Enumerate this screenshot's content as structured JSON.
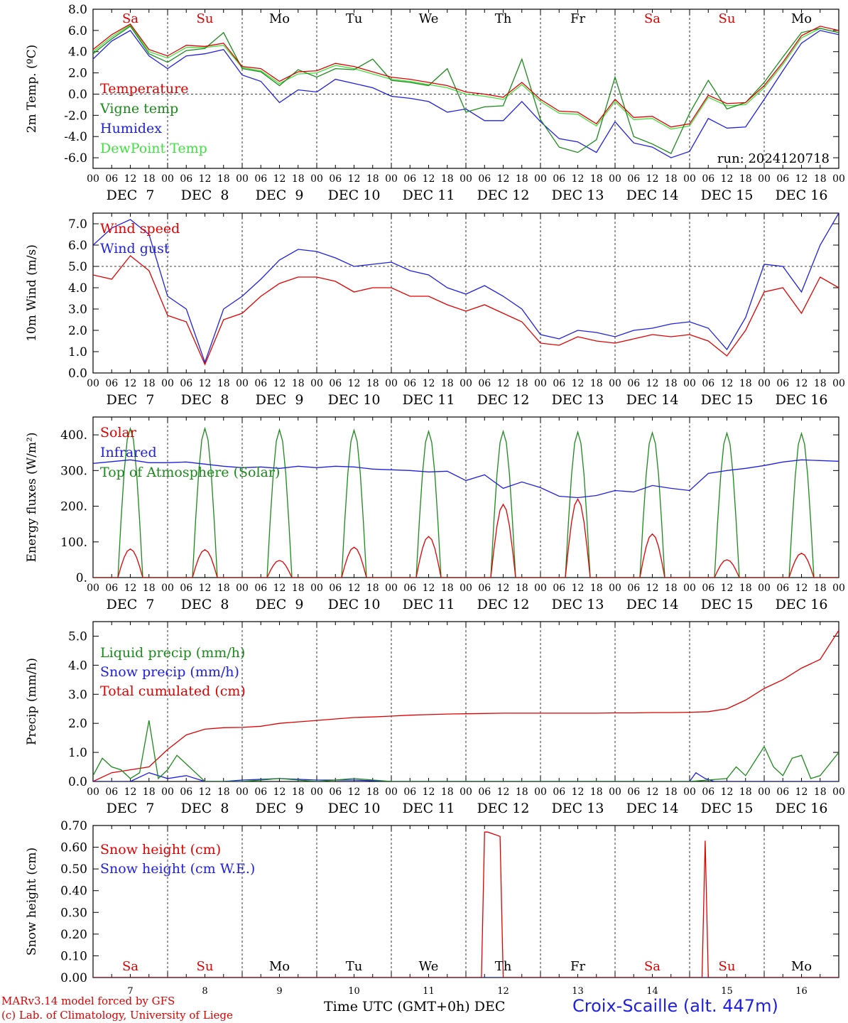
{
  "footer": {
    "model": "MARv3.14 model forced by GFS",
    "copyright": "(c) Lab. of Climatology, University of Liege",
    "station": "Croix-Scaille (alt. 447m)",
    "xlabel": "Time UTC (GMT+0h) DEC"
  },
  "days": [
    {
      "abbr": "Sa",
      "date": "DEC  7",
      "num": "7",
      "weekend": true
    },
    {
      "abbr": "Su",
      "date": "DEC  8",
      "num": "8",
      "weekend": true
    },
    {
      "abbr": "Mo",
      "date": "DEC  9",
      "num": "9",
      "weekend": false
    },
    {
      "abbr": "Tu",
      "date": "DEC 10",
      "num": "10",
      "weekend": false
    },
    {
      "abbr": "We",
      "date": "DEC 11",
      "num": "11",
      "weekend": false
    },
    {
      "abbr": "Th",
      "date": "DEC 12",
      "num": "12",
      "weekend": false
    },
    {
      "abbr": "Fr",
      "date": "DEC 13",
      "num": "13",
      "weekend": false
    },
    {
      "abbr": "Sa",
      "date": "DEC 14",
      "num": "14",
      "weekend": true
    },
    {
      "abbr": "Su",
      "date": "DEC 15",
      "num": "15",
      "weekend": true
    },
    {
      "abbr": "Mo",
      "date": "DEC 16",
      "num": "16",
      "weekend": false
    }
  ],
  "hour_labels": [
    "00",
    "06",
    "12",
    "18"
  ],
  "final_hour_label": "00",
  "colors": {
    "red": "#e00000",
    "green": "#1a8a1a",
    "blue": "#2020e0",
    "lightgreen": "#40e040"
  },
  "chart_data": [
    {
      "type": "line",
      "ylabel": "2m Temp. (ºC)",
      "ylim": [
        -7,
        8
      ],
      "yticks": [
        "-6.0",
        "-4.0",
        "-2.0",
        "0.0",
        "2.0",
        "4.0",
        "6.0",
        "8.0"
      ],
      "yticks_values": [
        -6,
        -4,
        -2,
        0,
        2,
        4,
        6,
        8
      ],
      "reference_line": 0,
      "day_header": true,
      "run_label": "run: 2024120718",
      "x": "hours from 2024-12-07 00 UTC",
      "series": [
        {
          "name": "Temperature",
          "color": "red",
          "x": [
            0,
            6,
            12,
            18,
            24,
            30,
            36,
            42,
            48,
            54,
            60,
            66,
            72,
            78,
            84,
            90,
            96,
            102,
            108,
            114,
            120,
            126,
            132,
            138,
            144,
            150,
            156,
            162,
            168,
            174,
            180,
            186,
            192,
            198,
            204,
            210,
            216,
            222,
            228,
            234,
            240
          ],
          "y": [
            4.2,
            5.6,
            6.6,
            4.2,
            3.6,
            4.6,
            4.5,
            4.8,
            2.6,
            2.4,
            1.2,
            2.1,
            2.2,
            2.9,
            2.6,
            2.1,
            1.6,
            1.4,
            1.1,
            0.8,
            0.2,
            0.0,
            -0.3,
            1.1,
            -0.5,
            -1.6,
            -1.7,
            -2.8,
            -0.5,
            -2.2,
            -2.1,
            -3.1,
            -2.8,
            -0.1,
            -0.9,
            -0.8,
            0.8,
            3.0,
            5.5,
            6.4,
            6.0
          ]
        },
        {
          "name": "Vigne temp",
          "color": "green",
          "x": [
            0,
            6,
            12,
            18,
            24,
            30,
            36,
            42,
            48,
            54,
            60,
            66,
            72,
            78,
            84,
            90,
            96,
            102,
            108,
            114,
            120,
            126,
            132,
            138,
            144,
            150,
            156,
            162,
            168,
            174,
            180,
            186,
            192,
            198,
            204,
            210,
            216,
            222,
            228,
            234,
            240
          ],
          "y": [
            3.8,
            5.2,
            6.4,
            3.8,
            3.0,
            4.1,
            4.3,
            5.8,
            2.4,
            2.1,
            0.8,
            2.3,
            1.6,
            2.4,
            2.3,
            3.3,
            1.3,
            1.1,
            0.8,
            2.4,
            -1.7,
            -1.2,
            -1.1,
            3.3,
            -2.4,
            -5.0,
            -5.5,
            -4.3,
            1.6,
            -4.0,
            -4.7,
            -5.6,
            -1.8,
            1.3,
            -1.4,
            -0.8,
            1.1,
            3.5,
            5.8,
            6.2,
            5.8
          ]
        },
        {
          "name": "Humidex",
          "color": "blue",
          "x": [
            0,
            6,
            12,
            18,
            24,
            30,
            36,
            42,
            48,
            54,
            60,
            66,
            72,
            78,
            84,
            90,
            96,
            102,
            108,
            114,
            120,
            126,
            132,
            138,
            144,
            150,
            156,
            162,
            168,
            174,
            180,
            186,
            192,
            198,
            204,
            210,
            216,
            222,
            228,
            234,
            240
          ],
          "y": [
            3.3,
            5.0,
            6.0,
            3.6,
            2.4,
            3.6,
            3.8,
            4.2,
            1.8,
            1.2,
            -0.8,
            0.4,
            0.2,
            1.4,
            1.0,
            0.6,
            -0.2,
            -0.4,
            -0.7,
            -1.7,
            -1.4,
            -2.5,
            -2.5,
            -0.7,
            -2.6,
            -4.2,
            -4.5,
            -5.5,
            -2.6,
            -4.6,
            -5.0,
            -6.0,
            -5.4,
            -2.3,
            -3.2,
            -3.1,
            -0.5,
            2.2,
            4.8,
            6.0,
            5.6
          ]
        },
        {
          "name": "DewPoint Temp",
          "color": "lightgreen",
          "x": [
            0,
            6,
            12,
            18,
            24,
            30,
            36,
            42,
            48,
            54,
            60,
            66,
            72,
            78,
            84,
            90,
            96,
            102,
            108,
            114,
            120,
            126,
            132,
            138,
            144,
            150,
            156,
            162,
            168,
            174,
            180,
            186,
            192,
            198,
            204,
            210,
            216,
            222,
            228,
            234,
            240
          ],
          "y": [
            4.0,
            5.4,
            6.5,
            4.0,
            3.4,
            4.4,
            4.4,
            4.6,
            2.5,
            2.2,
            1.0,
            1.9,
            2.0,
            2.7,
            2.4,
            1.9,
            1.4,
            1.2,
            0.9,
            0.6,
            0.0,
            -0.2,
            -0.5,
            0.9,
            -0.7,
            -1.8,
            -1.9,
            -3.0,
            -0.7,
            -2.4,
            -2.3,
            -3.3,
            -3.0,
            -0.3,
            -1.1,
            -1.0,
            0.6,
            2.8,
            5.3,
            6.2,
            5.8
          ]
        }
      ]
    },
    {
      "type": "line",
      "ylabel": "10m Wind (m/s)",
      "ylim": [
        0,
        7.5
      ],
      "yticks": [
        "0.0",
        "1.0",
        "2.0",
        "3.0",
        "4.0",
        "5.0",
        "6.0",
        "7.0"
      ],
      "yticks_values": [
        0,
        1,
        2,
        3,
        4,
        5,
        6,
        7
      ],
      "reference_line": 5,
      "x": "hours from 2024-12-07 00 UTC",
      "series": [
        {
          "name": "Wind speed",
          "color": "red",
          "x": [
            0,
            6,
            12,
            18,
            24,
            30,
            36,
            42,
            48,
            54,
            60,
            66,
            72,
            78,
            84,
            90,
            96,
            102,
            108,
            114,
            120,
            126,
            132,
            138,
            144,
            150,
            156,
            162,
            168,
            174,
            180,
            186,
            192,
            198,
            204,
            210,
            216,
            222,
            228,
            234,
            240
          ],
          "y": [
            4.6,
            4.4,
            5.5,
            4.8,
            2.7,
            2.4,
            0.4,
            2.5,
            2.8,
            3.6,
            4.2,
            4.5,
            4.5,
            4.3,
            3.8,
            4.0,
            4.0,
            3.6,
            3.6,
            3.2,
            2.9,
            3.2,
            2.8,
            2.4,
            1.4,
            1.3,
            1.7,
            1.5,
            1.4,
            1.6,
            1.8,
            1.7,
            1.8,
            1.5,
            0.8,
            2.0,
            3.8,
            4.0,
            2.8,
            4.5,
            4.0
          ]
        },
        {
          "name": "Wind gust",
          "color": "blue",
          "x": [
            0,
            6,
            12,
            18,
            24,
            30,
            36,
            42,
            48,
            54,
            60,
            66,
            72,
            78,
            84,
            90,
            96,
            102,
            108,
            114,
            120,
            126,
            132,
            138,
            144,
            150,
            156,
            162,
            168,
            174,
            180,
            186,
            192,
            198,
            204,
            210,
            216,
            222,
            228,
            234,
            240
          ],
          "y": [
            6.0,
            6.8,
            7.2,
            6.5,
            3.6,
            3.0,
            0.5,
            3.0,
            3.6,
            4.4,
            5.3,
            5.8,
            5.7,
            5.4,
            5.0,
            5.1,
            5.2,
            4.8,
            4.6,
            4.0,
            3.7,
            4.1,
            3.6,
            3.0,
            1.8,
            1.6,
            2.0,
            1.9,
            1.7,
            2.0,
            2.1,
            2.3,
            2.4,
            2.1,
            1.1,
            2.6,
            5.1,
            5.0,
            3.8,
            6.0,
            7.5
          ]
        }
      ]
    },
    {
      "type": "line",
      "ylabel": "Energy fluxes (W/m²)",
      "ylim": [
        0,
        450
      ],
      "yticks": [
        "0.",
        "100.",
        "200.",
        "300.",
        "400."
      ],
      "yticks_values": [
        0,
        100,
        200,
        300,
        400
      ],
      "x": "hours from 2024-12-07 00 UTC",
      "series": [
        {
          "name": "Solar",
          "color": "red",
          "peaks": [
            80,
            78,
            48,
            85,
            115,
            205,
            220,
            122,
            50,
            68
          ]
        },
        {
          "name": "Infrared",
          "color": "blue",
          "x": [
            0,
            6,
            12,
            18,
            24,
            30,
            36,
            42,
            48,
            54,
            60,
            66,
            72,
            78,
            84,
            90,
            96,
            102,
            108,
            114,
            120,
            126,
            132,
            138,
            144,
            150,
            156,
            162,
            168,
            174,
            180,
            186,
            192,
            198,
            204,
            210,
            216,
            222,
            228,
            234,
            240
          ],
          "y": [
            320,
            325,
            330,
            322,
            322,
            324,
            318,
            312,
            308,
            310,
            306,
            312,
            308,
            312,
            310,
            304,
            302,
            300,
            296,
            298,
            272,
            288,
            250,
            268,
            252,
            228,
            224,
            230,
            244,
            240,
            258,
            250,
            244,
            292,
            300,
            306,
            314,
            324,
            330,
            328,
            326
          ]
        },
        {
          "name": "Top of Atmosphere (Solar)",
          "color": "green",
          "peaks": [
            418,
            418,
            414,
            413,
            410,
            410,
            408,
            406,
            405,
            404
          ]
        }
      ]
    },
    {
      "type": "line",
      "ylabel": "Precip (mm/h)",
      "ylim": [
        0,
        5.5
      ],
      "yticks": [
        "0.0",
        "1.0",
        "2.0",
        "3.0",
        "4.0",
        "5.0"
      ],
      "yticks_values": [
        0,
        1,
        2,
        3,
        4,
        5
      ],
      "x": "hours from 2024-12-07 00 UTC",
      "series": [
        {
          "name": "Liquid precip (mm/h)",
          "color": "green",
          "x": [
            0,
            3,
            6,
            9,
            12,
            15,
            18,
            21,
            24,
            27,
            30,
            33,
            36,
            39,
            42,
            48,
            60,
            72,
            84,
            96,
            120,
            144,
            168,
            192,
            204,
            207,
            210,
            213,
            216,
            219,
            222,
            225,
            228,
            231,
            234,
            237,
            240
          ],
          "y": [
            0.2,
            0.8,
            0.5,
            0.4,
            0.1,
            0.3,
            2.1,
            0.1,
            0.4,
            0.9,
            0.6,
            0.3,
            0.0,
            0.0,
            0.0,
            0.0,
            0.1,
            0.0,
            0.1,
            0.0,
            0.0,
            0.0,
            0.0,
            0.0,
            0.1,
            0.5,
            0.2,
            0.7,
            1.2,
            0.5,
            0.2,
            0.8,
            0.9,
            0.1,
            0.2,
            0.6,
            1.0
          ]
        },
        {
          "name": "Snow precip (mm/h)",
          "color": "blue",
          "x": [
            0,
            12,
            18,
            24,
            30,
            36,
            42,
            48,
            60,
            72,
            84,
            96,
            120,
            144,
            168,
            192,
            194,
            197,
            200,
            210,
            240
          ],
          "y": [
            0.0,
            0.0,
            0.3,
            0.1,
            0.2,
            0.0,
            0.0,
            0.05,
            0.1,
            0.05,
            0.05,
            0.0,
            0.0,
            0.0,
            0.0,
            0.0,
            0.3,
            0.1,
            0.0,
            0.0,
            0.0
          ]
        },
        {
          "name": "Total cumulated (cm)",
          "color": "red",
          "x": [
            0,
            6,
            12,
            18,
            24,
            30,
            36,
            42,
            48,
            54,
            60,
            66,
            72,
            78,
            84,
            90,
            96,
            102,
            108,
            114,
            120,
            126,
            132,
            138,
            144,
            150,
            156,
            162,
            168,
            174,
            180,
            186,
            192,
            198,
            204,
            210,
            216,
            222,
            228,
            234,
            240
          ],
          "y": [
            0.0,
            0.3,
            0.4,
            0.5,
            1.1,
            1.6,
            1.8,
            1.85,
            1.86,
            1.9,
            2.0,
            2.05,
            2.1,
            2.15,
            2.2,
            2.22,
            2.25,
            2.28,
            2.3,
            2.32,
            2.33,
            2.34,
            2.35,
            2.35,
            2.35,
            2.35,
            2.35,
            2.35,
            2.36,
            2.36,
            2.37,
            2.37,
            2.38,
            2.4,
            2.5,
            2.8,
            3.2,
            3.5,
            3.9,
            4.2,
            5.2
          ]
        }
      ]
    },
    {
      "type": "line",
      "ylabel": "Snow height (cm)",
      "ylim": [
        0,
        0.7
      ],
      "yticks": [
        "0.00",
        "0.10",
        "0.20",
        "0.30",
        "0.40",
        "0.50",
        "0.60",
        "0.70"
      ],
      "yticks_values": [
        0,
        0.1,
        0.2,
        0.3,
        0.4,
        0.5,
        0.6,
        0.7
      ],
      "day_footer": true,
      "x": "hours from 2024-12-07 00 UTC",
      "series": [
        {
          "name": "Snow height (cm)",
          "color": "red",
          "x": [
            0,
            125,
            126,
            127,
            131,
            132,
            133,
            196,
            197,
            198,
            240
          ],
          "y": [
            0,
            0,
            0.67,
            0.67,
            0.65,
            0.0,
            0.0,
            0.0,
            0.63,
            0.0,
            0.0
          ]
        },
        {
          "name": "Snow height (cm W.E.)",
          "color": "blue",
          "x": [
            0,
            240
          ],
          "y": [
            0,
            0
          ]
        }
      ]
    }
  ]
}
